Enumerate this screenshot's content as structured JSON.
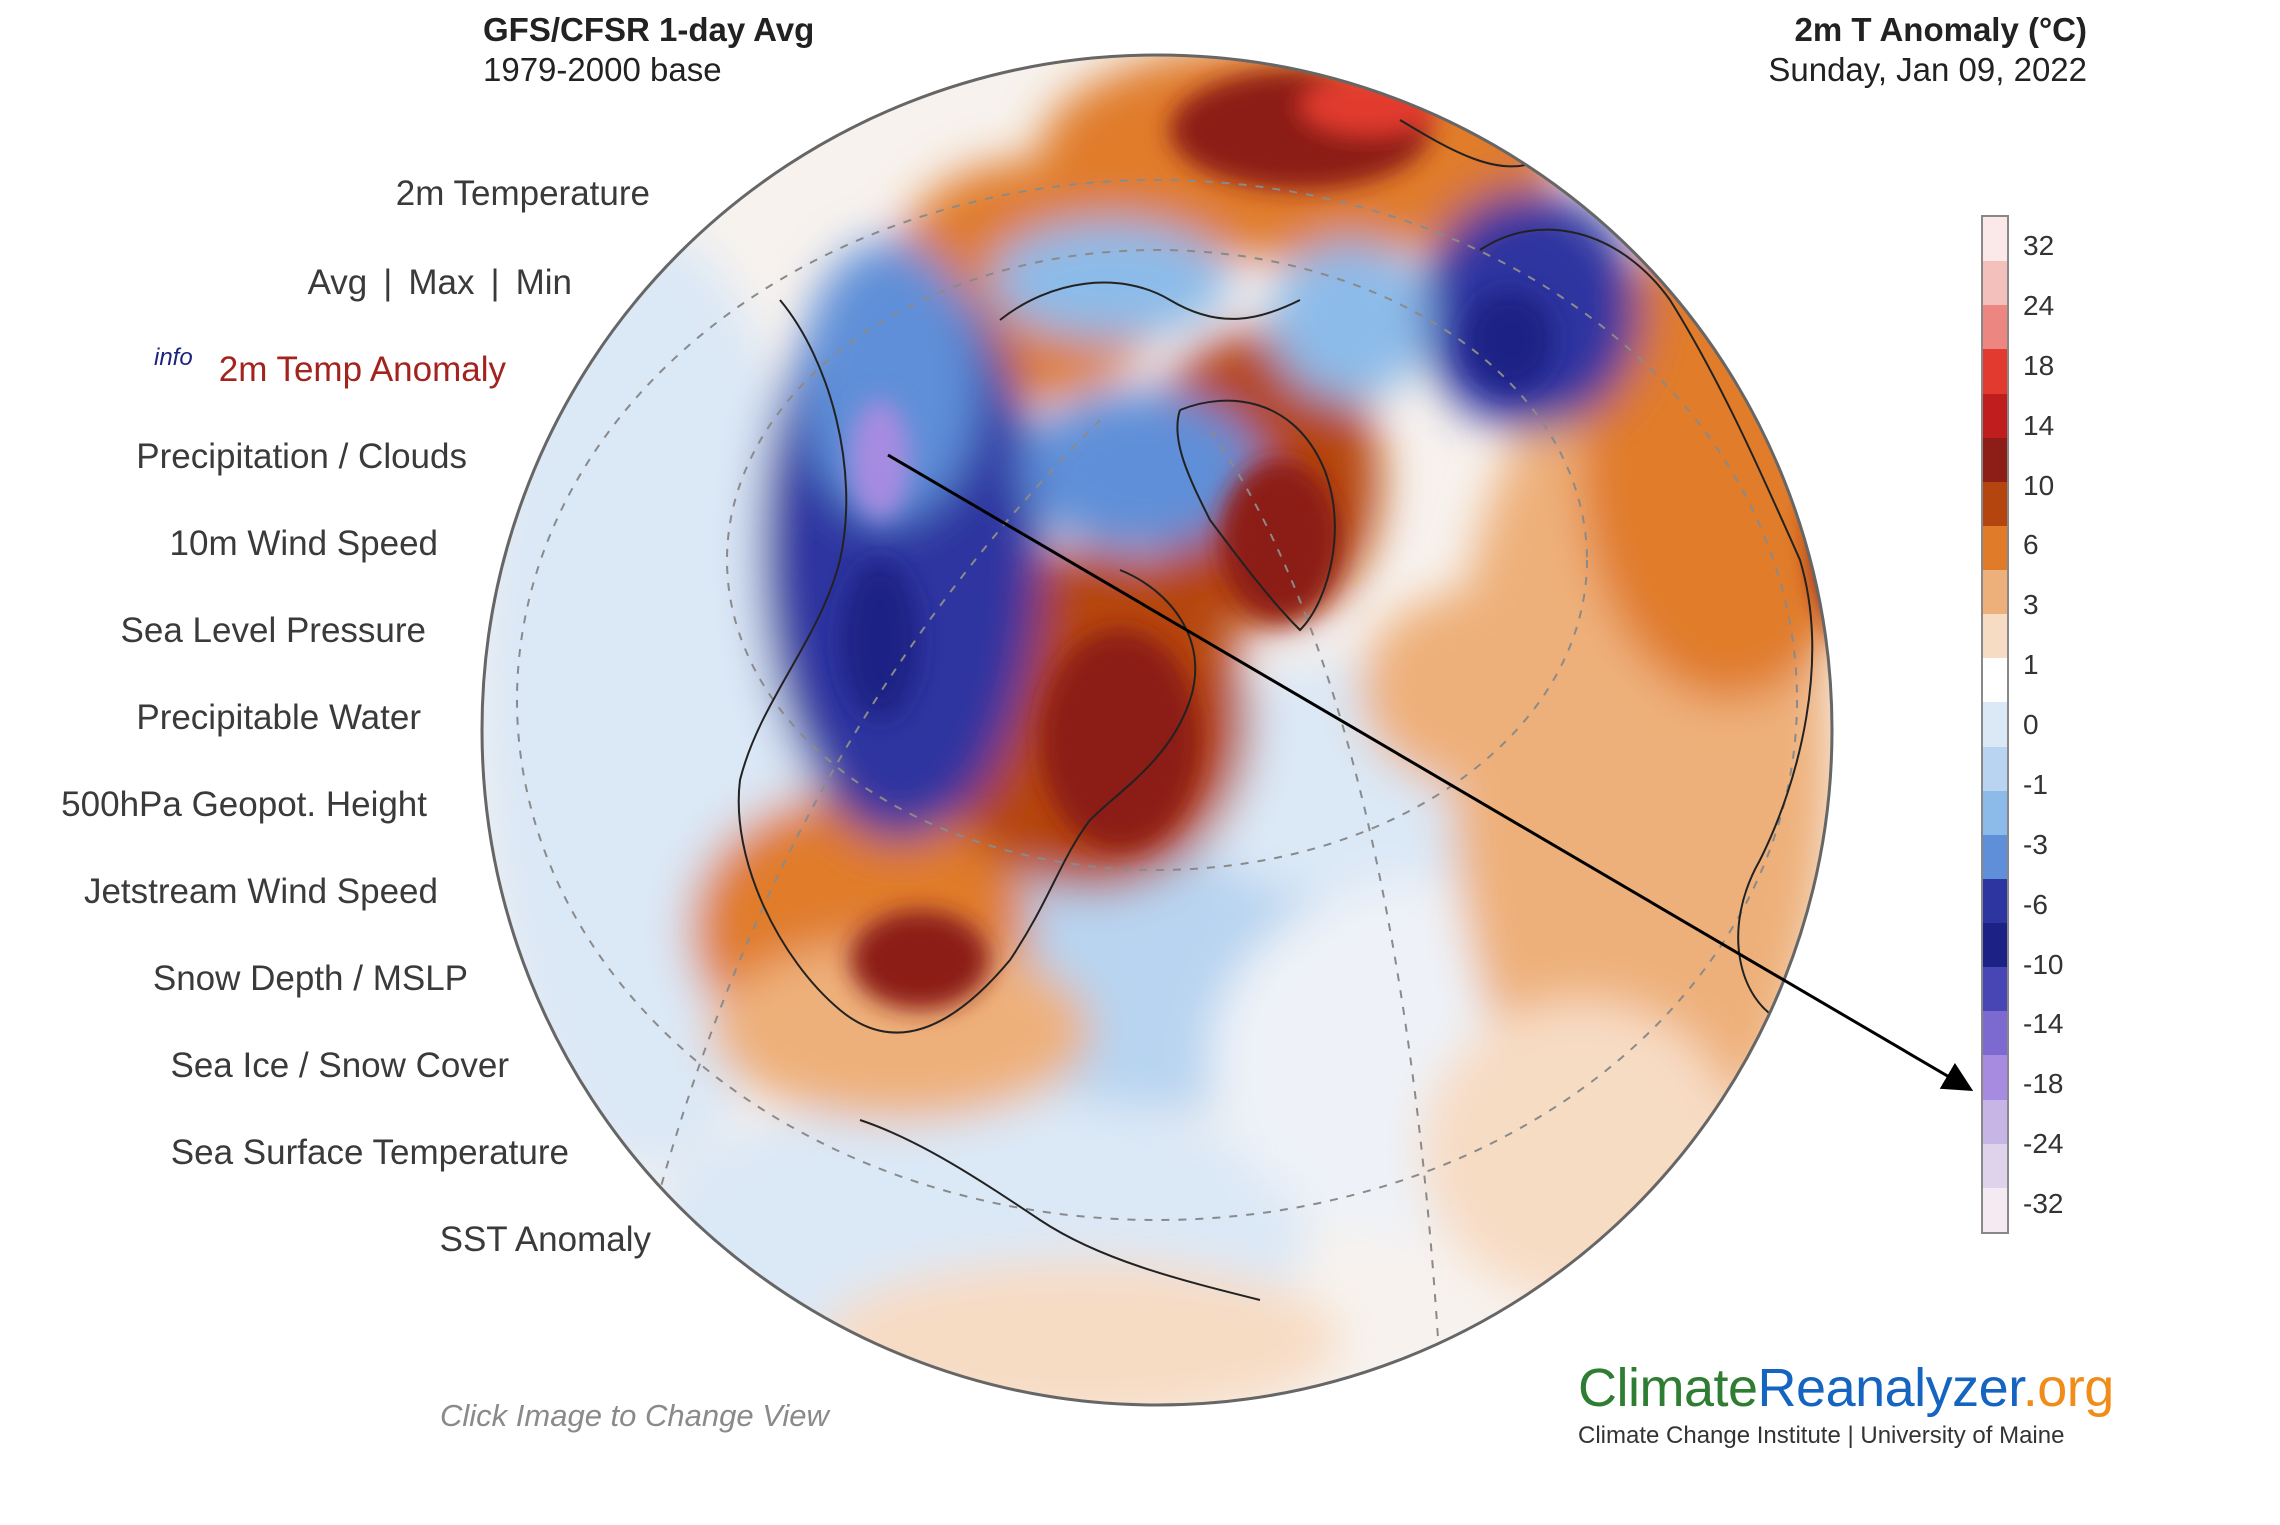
{
  "header": {
    "left_title": "GFS/CFSR 1-day Avg",
    "left_subtitle": "1979-2000 base",
    "right_title": "2m T Anomaly (°C)",
    "right_subtitle": "Sunday, Jan 09, 2022"
  },
  "menu": {
    "items": [
      {
        "label": "2m Temperature"
      },
      {
        "label": "Avg"
      },
      {
        "label": "Max"
      },
      {
        "label": "Min"
      },
      {
        "label": "2m Temp Anomaly",
        "info": "info"
      },
      {
        "label": "Precipitation / Clouds"
      },
      {
        "label": "10m Wind Speed"
      },
      {
        "label": "Sea Level Pressure"
      },
      {
        "label": "Precipitable Water"
      },
      {
        "label": "500hPa Geopot. Height"
      },
      {
        "label": "Jetstream Wind Speed"
      },
      {
        "label": "Snow Depth / MSLP"
      },
      {
        "label": "Sea Ice / Snow Cover"
      },
      {
        "label": "Sea Surface Temperature"
      },
      {
        "label": "SST Anomaly"
      }
    ],
    "separator": "|"
  },
  "map": {
    "hint": "Click Image to Change View"
  },
  "legend": {
    "labels": [
      "32",
      "24",
      "18",
      "14",
      "10",
      "6",
      "3",
      "1",
      "0",
      "-1",
      "-3",
      "-6",
      "-10",
      "-14",
      "-18",
      "-24",
      "-32"
    ],
    "colors": [
      "#fbe9ea",
      "#f4c0bc",
      "#ec8680",
      "#e23a2f",
      "#bf1d1e",
      "#8c1d17",
      "#b5450f",
      "#e07b2a",
      "#eeb07a",
      "#f7dcc4",
      "#ffffff",
      "#dbe8f6",
      "#b8d4f0",
      "#8cbbe9",
      "#5f8fd8",
      "#2d35a0",
      "#1c2285",
      "#4845b5",
      "#7d6ad0",
      "#a68be0",
      "#c7b5e6",
      "#dfd3ec",
      "#f5eaf2"
    ],
    "accent_colors": {
      "active_menu": "#a3231f",
      "info": "#1a237e"
    }
  },
  "brand": {
    "part1": "Climate",
    "part2": "Reanalyzer",
    "part3": ".org",
    "subtitle": "Climate Change Institute | University of Maine"
  }
}
